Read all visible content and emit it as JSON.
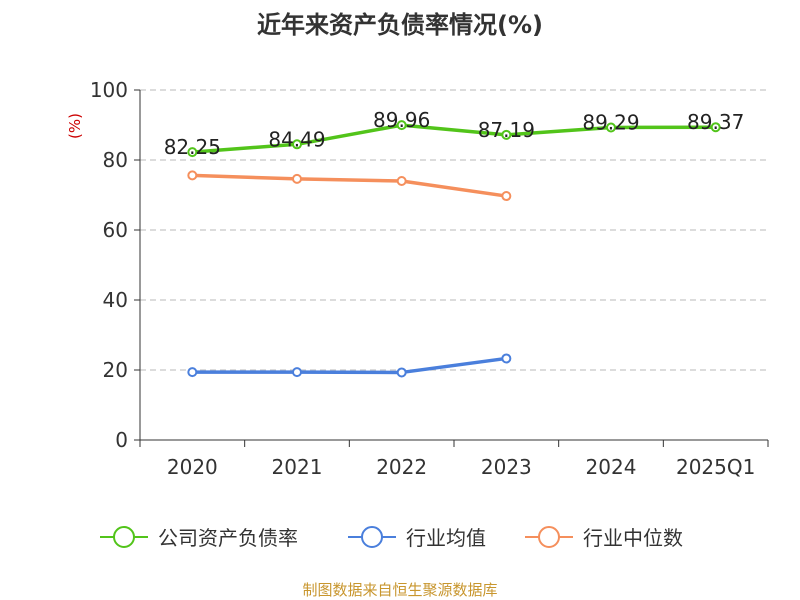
{
  "chart_data": {
    "type": "line",
    "title": "近年来资产负债率情况(%)",
    "ylabel": "(%)",
    "xlabel": "",
    "categories": [
      "2020",
      "2021",
      "2022",
      "2023",
      "2024",
      "2025Q1"
    ],
    "yticks": [
      0,
      20,
      40,
      60,
      80,
      100
    ],
    "ylim": [
      0,
      100
    ],
    "grid": true,
    "legend_position": "bottom",
    "series": [
      {
        "name": "公司资产负债率",
        "color": "#52c41a",
        "values": [
          82.25,
          84.49,
          89.96,
          87.19,
          89.29,
          89.37
        ],
        "labels": [
          "82.25",
          "84.49",
          "89.96",
          "87.19",
          "89.29",
          "89.37"
        ],
        "show_labels": true
      },
      {
        "name": "行业均值",
        "color": "#4a7fdc",
        "values": [
          19.4,
          19.4,
          19.3,
          23.3,
          null,
          null
        ],
        "show_labels": false
      },
      {
        "name": "行业中位数",
        "color": "#f58f5c",
        "values": [
          75.6,
          74.6,
          74.0,
          69.7,
          null,
          null
        ],
        "show_labels": false
      }
    ]
  },
  "source": "制图数据来自恒生聚源数据库"
}
